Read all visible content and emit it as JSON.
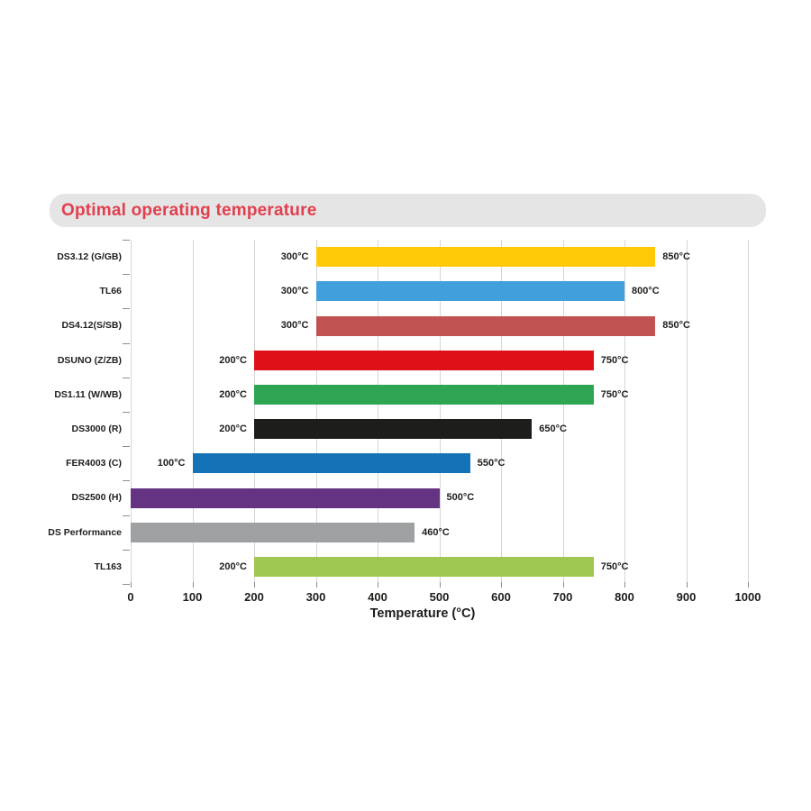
{
  "chart_data": {
    "type": "bar",
    "orientation": "horizontal",
    "title": "Optimal operating temperature",
    "xlabel": "Temperature (°C)",
    "xlim": [
      0,
      1000
    ],
    "xticks": [
      0,
      100,
      200,
      300,
      400,
      500,
      600,
      700,
      800,
      900,
      1000
    ],
    "grid": true,
    "legend": false,
    "categories": [
      "DS3.12 (G/GB)",
      "TL66",
      "DS4.12(S/SB)",
      "DSUNO (Z/ZB)",
      "DS1.11 (W/WB)",
      "DS3000 (R)",
      "FER4003 (C)",
      "DS2500 (H)",
      "DS Performance",
      "TL163"
    ],
    "series": [
      {
        "name": "DS3.12 (G/GB)",
        "range_start": 300,
        "range_end": 850,
        "start_label": "300°C",
        "end_label": "850°C",
        "color": "#FFC907"
      },
      {
        "name": "TL66",
        "range_start": 300,
        "range_end": 800,
        "start_label": "300°C",
        "end_label": "800°C",
        "color": "#41A0DC"
      },
      {
        "name": "DS4.12(S/SB)",
        "range_start": 300,
        "range_end": 850,
        "start_label": "300°C",
        "end_label": "850°C",
        "color": "#C05351"
      },
      {
        "name": "DSUNO (Z/ZB)",
        "range_start": 200,
        "range_end": 750,
        "start_label": "200°C",
        "end_label": "750°C",
        "color": "#E01019"
      },
      {
        "name": "DS1.11 (W/WB)",
        "range_start": 200,
        "range_end": 750,
        "start_label": "200°C",
        "end_label": "750°C",
        "color": "#2EA552"
      },
      {
        "name": "DS3000 (R)",
        "range_start": 200,
        "range_end": 650,
        "start_label": "200°C",
        "end_label": "650°C",
        "color": "#1D1D1B"
      },
      {
        "name": "FER4003 (C)",
        "range_start": 100,
        "range_end": 550,
        "start_label": "100°C",
        "end_label": "550°C",
        "color": "#1472B7"
      },
      {
        "name": "DS2500 (H)",
        "range_start": 0,
        "range_end": 500,
        "start_label": "",
        "end_label": "500°C",
        "color": "#643382"
      },
      {
        "name": "DS Performance",
        "range_start": 0,
        "range_end": 460,
        "start_label": "",
        "end_label": "460°C",
        "color": "#9FA0A2"
      },
      {
        "name": "TL163",
        "range_start": 200,
        "range_end": 750,
        "start_label": "200°C",
        "end_label": "750°C",
        "color": "#9EC84F"
      }
    ]
  },
  "colors": {
    "title_text": "#E23F4E",
    "header_bg": "#E5E5E5",
    "grid_line": "#D5D5D5",
    "tick_mark": "#8C8C8C",
    "text": "#1D1D1B",
    "background": "#FFFFFF"
  }
}
